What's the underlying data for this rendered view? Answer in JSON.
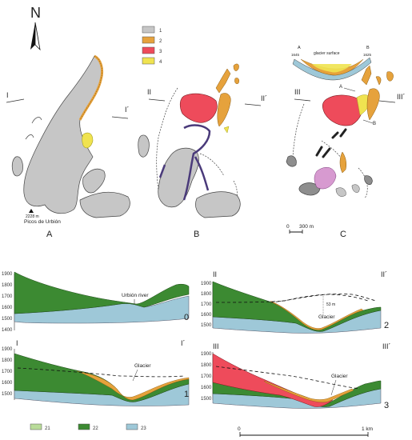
{
  "north": {
    "label": "N"
  },
  "legend_top": {
    "items": [
      {
        "num": "1",
        "color": "#c6c6c6"
      },
      {
        "num": "2",
        "color": "#e6a23c"
      },
      {
        "num": "3",
        "color": "#ee4b5b"
      },
      {
        "num": "4",
        "color": "#f0e350"
      }
    ]
  },
  "maps": {
    "A": {
      "letter": "A",
      "cut_left": "I",
      "cut_right": "I´",
      "peak_elev": "2228 m",
      "peak_name": "Picos de Urbión"
    },
    "B": {
      "letter": "B",
      "cut_left": "II",
      "cut_right": "II´"
    },
    "C": {
      "letter": "C",
      "cut_left": "III",
      "cut_right": "III´",
      "inset_a": "A",
      "inset_b": "B",
      "inset_elev_a": "1645",
      "inset_elev_b": "1625",
      "inset_label": "glacier surface",
      "sec_a": "A",
      "sec_b": "B",
      "scale_zero": "0",
      "scale_len": "300 m"
    }
  },
  "profiles": {
    "p0": {
      "num": "0",
      "ticks": [
        "1900",
        "1800",
        "1700",
        "1600",
        "1500",
        "1400"
      ],
      "annot": "Urbión river"
    },
    "p1": {
      "num": "1",
      "left": "I",
      "right": "I´",
      "ticks": [
        "1900",
        "1800",
        "1700",
        "1600",
        "1500"
      ],
      "annot": "Glacier"
    },
    "p2": {
      "num": "2",
      "left": "II",
      "right": "II´",
      "ticks": [
        "1900",
        "1800",
        "1700",
        "1600",
        "1500"
      ],
      "annot": "Glacier",
      "depth": "53 m"
    },
    "p3": {
      "num": "3",
      "left": "III",
      "right": "III´",
      "ticks": [
        "1900",
        "1800",
        "1700",
        "1600",
        "1500"
      ],
      "annot": "Glacier"
    }
  },
  "legend_bottom": {
    "items": [
      {
        "num": "21",
        "color": "#b9dc9a"
      },
      {
        "num": "22",
        "color": "#3c8a32"
      },
      {
        "num": "23",
        "color": "#9ec8d8"
      }
    ]
  },
  "scale_bottom": {
    "zero": "0",
    "len": "1 km"
  }
}
